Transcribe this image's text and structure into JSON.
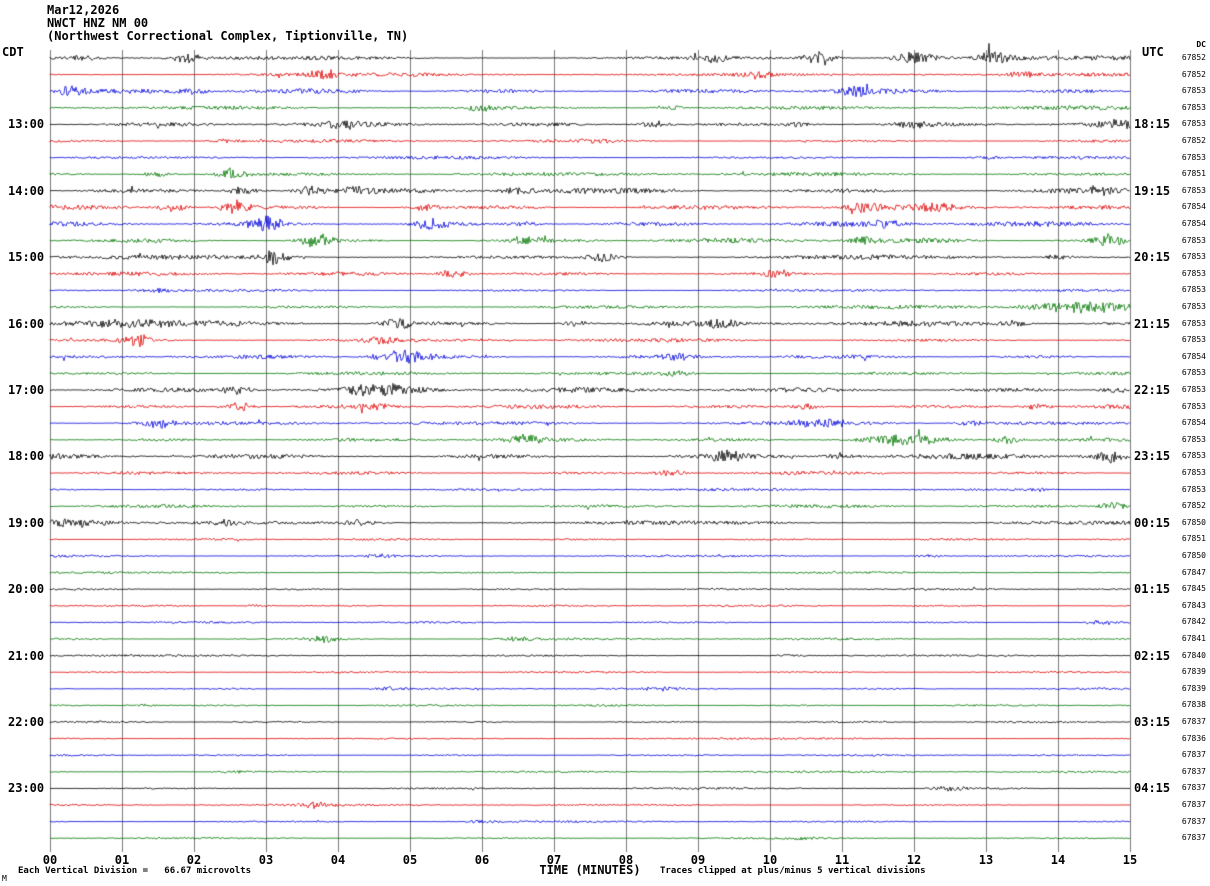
{
  "header": {
    "date": "Mar12,2026",
    "station": "NWCT HNZ NM 00",
    "location": "(Northwest Correctional Complex, Tiptionville, TN)"
  },
  "axes": {
    "left_tz": "CDT",
    "right_tz": "UTC",
    "dc_header": "DC",
    "x_title": "TIME (MINUTES)",
    "x_ticks": [
      "00",
      "01",
      "02",
      "03",
      "04",
      "05",
      "06",
      "07",
      "08",
      "09",
      "10",
      "11",
      "12",
      "13",
      "14",
      "15"
    ]
  },
  "footer": {
    "left": "Each Vertical Division =   66.67 microvolts",
    "right": "Traces clipped at plus/minus 5 vertical divisions",
    "corner": "M"
  },
  "colors": {
    "black": "#000000",
    "red": "#e00000",
    "blue": "#0000dd",
    "green": "#007700",
    "grid": "#7a7a7a"
  },
  "chart_data": {
    "type": "line",
    "title": "NWCT HNZ NM 00 helicorder, Mar12,2026",
    "x_range_minutes": [
      0,
      15
    ],
    "row_duration_minutes": 15,
    "start_time_cdt": "12:00",
    "microvolts_per_division": 66.67,
    "clip_divisions": 5,
    "colors_cycle": [
      "black",
      "red",
      "blue",
      "green"
    ],
    "rows": [
      {
        "cdt": "",
        "utc": "",
        "dc": "67852",
        "color": "black",
        "amp": 2.2,
        "bursts": [
          [
            0.5,
            3
          ],
          [
            1.9,
            5
          ],
          [
            9.2,
            4
          ],
          [
            10.7,
            8
          ],
          [
            11.9,
            6
          ],
          [
            12.2,
            5
          ],
          [
            13.1,
            7
          ]
        ]
      },
      {
        "cdt": "",
        "utc": "",
        "dc": "67852",
        "color": "red",
        "amp": 1.8,
        "bursts": [
          [
            3.8,
            5
          ],
          [
            9.8,
            4
          ],
          [
            13.5,
            3
          ]
        ]
      },
      {
        "cdt": "",
        "utc": "",
        "dc": "67853",
        "color": "blue",
        "amp": 2.2,
        "bursts": [
          [
            0.3,
            6
          ],
          [
            2.0,
            3
          ],
          [
            11.2,
            5
          ]
        ]
      },
      {
        "cdt": "",
        "utc": "",
        "dc": "67853",
        "color": "green",
        "amp": 1.8,
        "bursts": [
          [
            6.0,
            4
          ],
          [
            8.6,
            3
          ]
        ]
      },
      {
        "cdt": "13:00",
        "utc": "18:15",
        "dc": "67853",
        "color": "black",
        "amp": 2.0,
        "bursts": [
          [
            4.1,
            4
          ],
          [
            8.4,
            4
          ],
          [
            10.4,
            3
          ],
          [
            12.0,
            3
          ],
          [
            14.8,
            5
          ]
        ]
      },
      {
        "cdt": "",
        "utc": "",
        "dc": "67852",
        "color": "red",
        "amp": 1.4,
        "bursts": [
          [
            2.4,
            2
          ],
          [
            7.6,
            2
          ]
        ]
      },
      {
        "cdt": "",
        "utc": "",
        "dc": "67853",
        "color": "blue",
        "amp": 1.4,
        "bursts": [
          [
            13.0,
            2
          ]
        ]
      },
      {
        "cdt": "",
        "utc": "",
        "dc": "67851",
        "color": "green",
        "amp": 1.7,
        "bursts": [
          [
            1.5,
            3
          ],
          [
            2.5,
            7
          ]
        ]
      },
      {
        "cdt": "14:00",
        "utc": "19:15",
        "dc": "67853",
        "color": "black",
        "amp": 2.6,
        "bursts": [
          [
            2.7,
            5
          ],
          [
            3.6,
            5
          ],
          [
            4.3,
            4
          ],
          [
            6.5,
            4
          ],
          [
            14.6,
            4
          ]
        ]
      },
      {
        "cdt": "",
        "utc": "",
        "dc": "67854",
        "color": "red",
        "amp": 2.2,
        "bursts": [
          [
            1.7,
            5
          ],
          [
            2.6,
            8
          ],
          [
            5.2,
            4
          ],
          [
            11.3,
            5
          ],
          [
            12.3,
            5
          ]
        ]
      },
      {
        "cdt": "",
        "utc": "",
        "dc": "67854",
        "color": "blue",
        "amp": 2.2,
        "bursts": [
          [
            3.0,
            8
          ],
          [
            5.3,
            7
          ],
          [
            6.6,
            4
          ],
          [
            11.6,
            4
          ]
        ]
      },
      {
        "cdt": "",
        "utc": "",
        "dc": "67853",
        "color": "green",
        "amp": 2.2,
        "bursts": [
          [
            3.7,
            7
          ],
          [
            6.6,
            4
          ],
          [
            11.3,
            4
          ],
          [
            14.7,
            6
          ]
        ]
      },
      {
        "cdt": "15:00",
        "utc": "20:15",
        "dc": "67853",
        "color": "black",
        "amp": 2.0,
        "bursts": [
          [
            3.1,
            8
          ],
          [
            7.7,
            6
          ],
          [
            14.0,
            3
          ]
        ]
      },
      {
        "cdt": "",
        "utc": "",
        "dc": "67853",
        "color": "red",
        "amp": 1.8,
        "bursts": [
          [
            5.6,
            5
          ],
          [
            10.1,
            4
          ]
        ]
      },
      {
        "cdt": "",
        "utc": "",
        "dc": "67853",
        "color": "blue",
        "amp": 1.2,
        "bursts": [
          [
            1.5,
            2
          ]
        ]
      },
      {
        "cdt": "",
        "utc": "",
        "dc": "67853",
        "color": "green",
        "amp": 1.6,
        "bursts": [
          [
            14.3,
            6,
            0.5
          ]
        ]
      },
      {
        "cdt": "16:00",
        "utc": "21:15",
        "dc": "67853",
        "color": "black",
        "amp": 2.4,
        "bursts": [
          [
            1.0,
            4,
            0.5
          ],
          [
            4.8,
            6
          ],
          [
            7.3,
            3
          ],
          [
            9.3,
            6
          ],
          [
            13.4,
            4
          ]
        ]
      },
      {
        "cdt": "",
        "utc": "",
        "dc": "67853",
        "color": "red",
        "amp": 1.7,
        "bursts": [
          [
            1.2,
            6
          ],
          [
            4.6,
            3
          ]
        ]
      },
      {
        "cdt": "",
        "utc": "",
        "dc": "67854",
        "color": "blue",
        "amp": 1.7,
        "bursts": [
          [
            4.9,
            7,
            0.3
          ],
          [
            8.7,
            3
          ]
        ]
      },
      {
        "cdt": "",
        "utc": "",
        "dc": "67853",
        "color": "green",
        "amp": 1.5,
        "bursts": [
          [
            8.7,
            3
          ]
        ]
      },
      {
        "cdt": "17:00",
        "utc": "22:15",
        "dc": "67853",
        "color": "black",
        "amp": 2.2,
        "bursts": [
          [
            2.6,
            4
          ],
          [
            4.6,
            6,
            0.3
          ],
          [
            14.8,
            4
          ]
        ]
      },
      {
        "cdt": "",
        "utc": "",
        "dc": "67853",
        "color": "red",
        "amp": 1.8,
        "bursts": [
          [
            2.6,
            6
          ],
          [
            4.5,
            3
          ],
          [
            10.5,
            4
          ],
          [
            13.7,
            3
          ]
        ]
      },
      {
        "cdt": "",
        "utc": "",
        "dc": "67854",
        "color": "blue",
        "amp": 1.7,
        "bursts": [
          [
            1.5,
            6
          ],
          [
            10.8,
            4,
            0.5
          ],
          [
            12.8,
            3
          ]
        ]
      },
      {
        "cdt": "",
        "utc": "",
        "dc": "67853",
        "color": "green",
        "amp": 1.7,
        "bursts": [
          [
            6.6,
            5
          ],
          [
            11.8,
            6,
            0.4
          ],
          [
            13.3,
            4
          ]
        ]
      },
      {
        "cdt": "18:00",
        "utc": "23:15",
        "dc": "67853",
        "color": "black",
        "amp": 2.6,
        "bursts": [
          [
            9.4,
            6
          ],
          [
            11.0,
            4
          ],
          [
            14.7,
            6
          ]
        ]
      },
      {
        "cdt": "",
        "utc": "",
        "dc": "67853",
        "color": "red",
        "amp": 1.5,
        "bursts": [
          [
            8.6,
            4
          ]
        ]
      },
      {
        "cdt": "",
        "utc": "",
        "dc": "67853",
        "color": "blue",
        "amp": 1.2,
        "bursts": [
          [
            13.7,
            2
          ]
        ]
      },
      {
        "cdt": "",
        "utc": "",
        "dc": "67852",
        "color": "green",
        "amp": 1.5,
        "bursts": [
          [
            14.8,
            5
          ]
        ]
      },
      {
        "cdt": "19:00",
        "utc": "00:15",
        "dc": "67850",
        "color": "black",
        "amp": 1.8,
        "bursts": [
          [
            0.4,
            6,
            0.3
          ],
          [
            2.4,
            3
          ],
          [
            4.3,
            3
          ]
        ]
      },
      {
        "cdt": "",
        "utc": "",
        "dc": "67851",
        "color": "red",
        "amp": 1.0,
        "bursts": []
      },
      {
        "cdt": "",
        "utc": "",
        "dc": "67850",
        "color": "blue",
        "amp": 1.0,
        "bursts": [
          [
            4.6,
            2
          ],
          [
            12.2,
            2
          ]
        ]
      },
      {
        "cdt": "",
        "utc": "",
        "dc": "67847",
        "color": "green",
        "amp": 0.9,
        "bursts": []
      },
      {
        "cdt": "20:00",
        "utc": "01:15",
        "dc": "67845",
        "color": "black",
        "amp": 0.9,
        "bursts": []
      },
      {
        "cdt": "",
        "utc": "",
        "dc": "67843",
        "color": "red",
        "amp": 0.9,
        "bursts": [
          [
            2.9,
            1.5
          ]
        ]
      },
      {
        "cdt": "",
        "utc": "",
        "dc": "67842",
        "color": "blue",
        "amp": 0.9,
        "bursts": [
          [
            14.6,
            3
          ]
        ]
      },
      {
        "cdt": "",
        "utc": "",
        "dc": "67841",
        "color": "green",
        "amp": 1.0,
        "bursts": [
          [
            3.8,
            4
          ],
          [
            6.5,
            3
          ]
        ]
      },
      {
        "cdt": "21:00",
        "utc": "02:15",
        "dc": "67840",
        "color": "black",
        "amp": 0.9,
        "bursts": [
          [
            10.3,
            1.5
          ]
        ]
      },
      {
        "cdt": "",
        "utc": "",
        "dc": "67839",
        "color": "red",
        "amp": 0.9,
        "bursts": []
      },
      {
        "cdt": "",
        "utc": "",
        "dc": "67839",
        "color": "blue",
        "amp": 0.9,
        "bursts": [
          [
            4.7,
            2
          ],
          [
            8.5,
            2
          ]
        ]
      },
      {
        "cdt": "",
        "utc": "",
        "dc": "67838",
        "color": "green",
        "amp": 0.9,
        "bursts": [
          [
            1.3,
            1.5
          ]
        ]
      },
      {
        "cdt": "22:00",
        "utc": "03:15",
        "dc": "67837",
        "color": "black",
        "amp": 0.9,
        "bursts": []
      },
      {
        "cdt": "",
        "utc": "",
        "dc": "67836",
        "color": "red",
        "amp": 0.9,
        "bursts": []
      },
      {
        "cdt": "",
        "utc": "",
        "dc": "67837",
        "color": "blue",
        "amp": 0.8,
        "bursts": []
      },
      {
        "cdt": "",
        "utc": "",
        "dc": "67837",
        "color": "green",
        "amp": 0.9,
        "bursts": [
          [
            2.5,
            1.5
          ]
        ]
      },
      {
        "cdt": "23:00",
        "utc": "04:15",
        "dc": "67837",
        "color": "black",
        "amp": 0.9,
        "bursts": [
          [
            12.5,
            3
          ]
        ]
      },
      {
        "cdt": "",
        "utc": "",
        "dc": "67837",
        "color": "red",
        "amp": 0.9,
        "bursts": [
          [
            3.7,
            3
          ]
        ]
      },
      {
        "cdt": "",
        "utc": "",
        "dc": "67837",
        "color": "blue",
        "amp": 0.9,
        "bursts": [
          [
            6.0,
            1.5
          ]
        ]
      },
      {
        "cdt": "",
        "utc": "",
        "dc": "67837",
        "color": "green",
        "amp": 0.8,
        "bursts": [
          [
            10.4,
            1.5
          ]
        ]
      }
    ]
  }
}
